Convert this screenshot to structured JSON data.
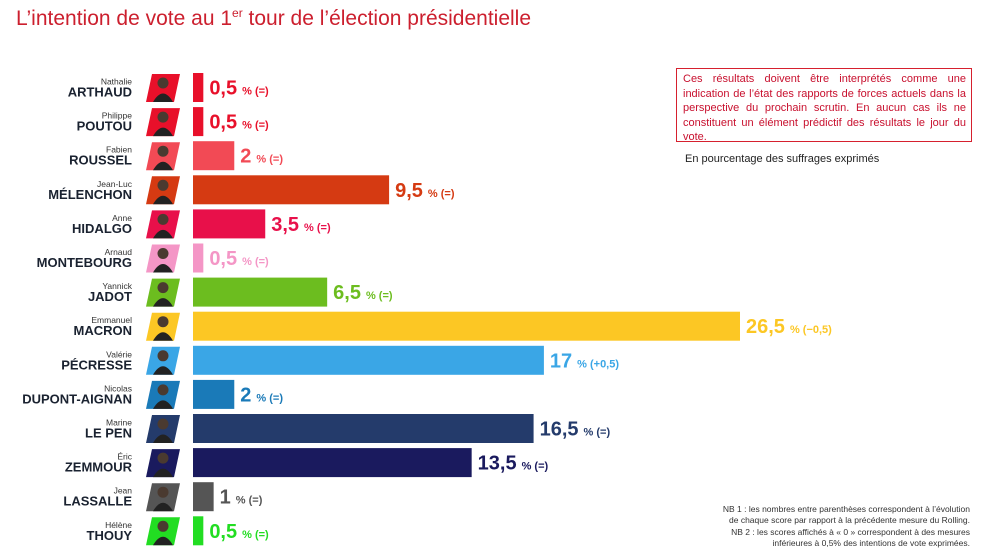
{
  "page": {
    "title_prefix": "L’intention de vote au 1",
    "title_sup": "er",
    "title_suffix": " tour de l’élection présidentielle",
    "note": "Ces résultats doivent être interprétés comme une indication de l’état des rapports de forces actuels dans la perspective du prochain scrutin. En aucun cas ils ne constituent un élément prédictif des résultats le jour du vote.",
    "unit": "En pourcentage des suffrages exprimés",
    "nb1_line1": "NB 1 : les nombres entre parenthèses correspondent à l’évolution",
    "nb1_line2": "de chaque score par rapport à la précédente mesure du Rolling.",
    "nb2_line1": "NB 2 : les scores affichés à « 0 » correspondent à des mesures",
    "nb2_line2": "inférieures à 0,5% des intentions de vote exprimées."
  },
  "chart_data": {
    "type": "bar",
    "orientation": "horizontal",
    "xlim": [
      0,
      26.5
    ],
    "categories": [
      {
        "first": "Nathalie",
        "last": "ARTHAUD",
        "value": 0.5,
        "label": "0,5",
        "change": "% (=)",
        "color": "#e8102a"
      },
      {
        "first": "Philippe",
        "last": "POUTOU",
        "value": 0.5,
        "label": "0,5",
        "change": "% (=)",
        "color": "#e8102a"
      },
      {
        "first": "Fabien",
        "last": "ROUSSEL",
        "value": 2,
        "label": "2",
        "change": "% (=)",
        "color": "#f24a55"
      },
      {
        "first": "Jean-Luc",
        "last": "MÉLENCHON",
        "value": 9.5,
        "label": "9,5",
        "change": "% (=)",
        "color": "#d53a12"
      },
      {
        "first": "Anne",
        "last": "HIDALGO",
        "value": 3.5,
        "label": "3,5",
        "change": "% (=)",
        "color": "#e8104a"
      },
      {
        "first": "Arnaud",
        "last": "MONTEBOURG",
        "value": 0.5,
        "label": "0,5",
        "change": "% (=)",
        "color": "#f496c6"
      },
      {
        "first": "Yannick",
        "last": "JADOT",
        "value": 6.5,
        "label": "6,5",
        "change": "% (=)",
        "color": "#6cbd1f"
      },
      {
        "first": "Emmanuel",
        "last": "MACRON",
        "value": 26.5,
        "label": "26,5",
        "change": "% (−0,5)",
        "color": "#fcc724"
      },
      {
        "first": "Valérie",
        "last": "PÉCRESSE",
        "value": 17,
        "label": "17",
        "change": "% (+0,5)",
        "color": "#3aa6e6"
      },
      {
        "first": "Nicolas",
        "last": "DUPONT-AIGNAN",
        "value": 2,
        "label": "2",
        "change": "% (=)",
        "color": "#1a7ab8"
      },
      {
        "first": "Marine",
        "last": "LE PEN",
        "value": 16.5,
        "label": "16,5",
        "change": "% (=)",
        "color": "#243b6b"
      },
      {
        "first": "Éric",
        "last": "ZEMMOUR",
        "value": 13.5,
        "label": "13,5",
        "change": "% (=)",
        "color": "#1a1a5e"
      },
      {
        "first": "Jean",
        "last": "LASSALLE",
        "value": 1,
        "label": "1",
        "change": "% (=)",
        "color": "#555555"
      },
      {
        "first": "Hélène",
        "last": "THOUY",
        "value": 0.5,
        "label": "0,5",
        "change": "% (=)",
        "color": "#22dd22"
      }
    ]
  }
}
